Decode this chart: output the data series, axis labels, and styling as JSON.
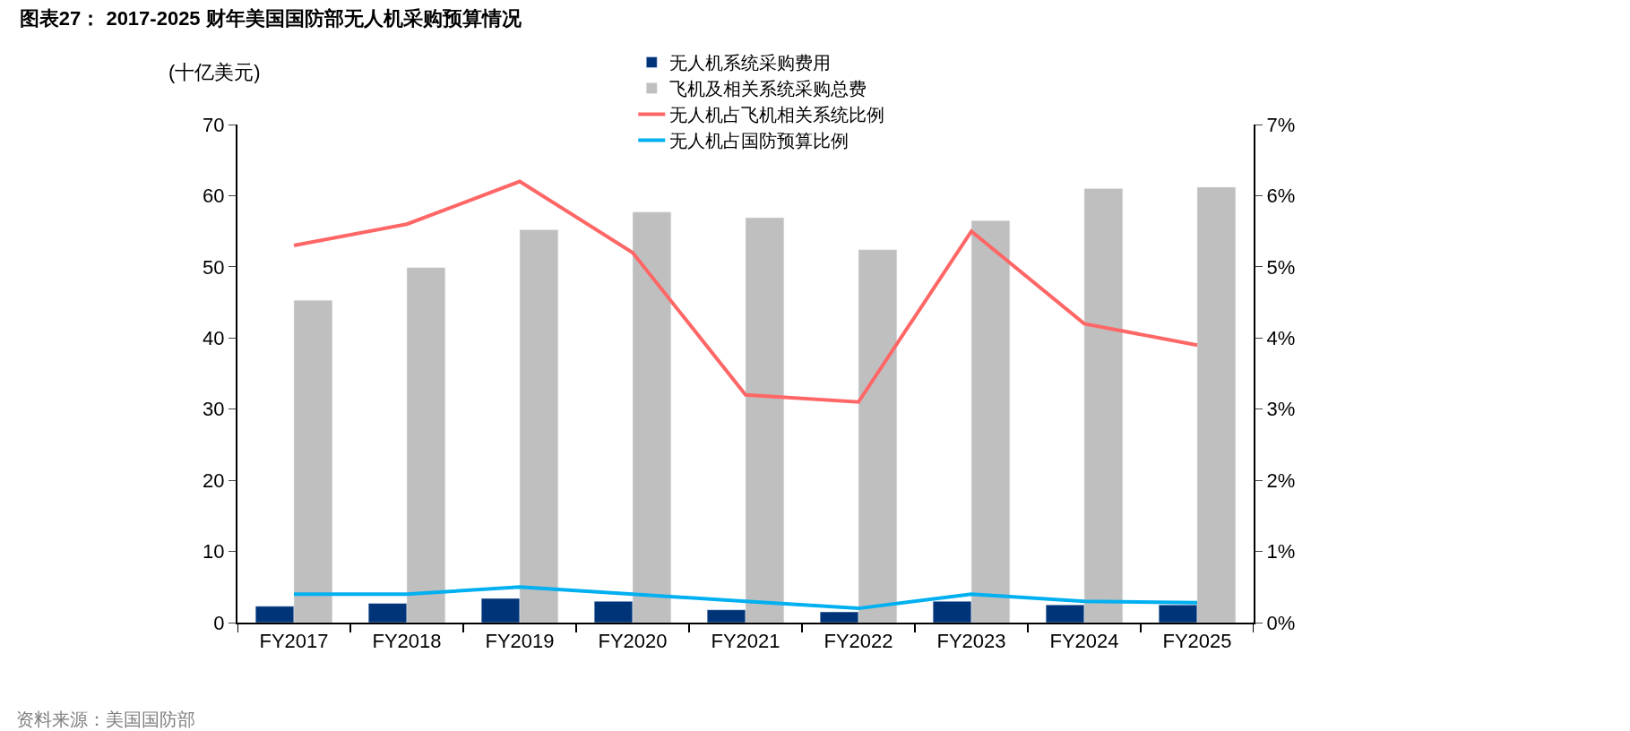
{
  "chart_data": {
    "type": "bar",
    "title": "图表27： 2017-2025 财年美国国防部无人机采购预算情况",
    "ylabel": "(十亿美元)",
    "categories": [
      "FY2017",
      "FY2018",
      "FY2019",
      "FY2020",
      "FY2021",
      "FY2022",
      "FY2023",
      "FY2024",
      "FY2025"
    ],
    "series": [
      {
        "name": "无人机系统采购费用",
        "color": "#003478",
        "values": [
          2.3,
          2.7,
          3.4,
          3.0,
          1.8,
          1.5,
          3.0,
          2.5,
          2.5
        ]
      },
      {
        "name": "飞机及相关系统采购总费",
        "color": "#bfbfbf",
        "values": [
          45.3,
          49.9,
          55.2,
          57.7,
          56.9,
          52.4,
          56.5,
          61.0,
          61.2
        ]
      },
      {
        "name": "无人机占飞机相关系统比例",
        "type": "line",
        "axis": "y2",
        "color": "#ff6666",
        "values": [
          5.3,
          5.6,
          6.2,
          5.2,
          3.2,
          3.1,
          5.5,
          4.2,
          3.9
        ]
      },
      {
        "name": "无人机占国防预算比例",
        "type": "line",
        "axis": "y2",
        "color": "#00b0f0",
        "values": [
          0.4,
          0.4,
          0.5,
          0.4,
          0.3,
          0.2,
          0.4,
          0.3,
          0.28
        ]
      }
    ],
    "ylim": [
      0,
      70
    ],
    "yticks": [
      0,
      10,
      20,
      30,
      40,
      50,
      60,
      70
    ],
    "y2lim": [
      0,
      7
    ],
    "y2ticks": [
      {
        "value": 0,
        "label": "0%"
      },
      {
        "value": 1,
        "label": "1%"
      },
      {
        "value": 2,
        "label": "2%"
      },
      {
        "value": 3,
        "label": "3%"
      },
      {
        "value": 4,
        "label": "4%"
      },
      {
        "value": 5,
        "label": "5%"
      },
      {
        "value": 6,
        "label": "6%"
      },
      {
        "value": 7,
        "label": "7%"
      }
    ],
    "legend": "top",
    "marker": "none",
    "line_style": "solid",
    "annotations": [
      "资料来源：美国国防部"
    ]
  }
}
